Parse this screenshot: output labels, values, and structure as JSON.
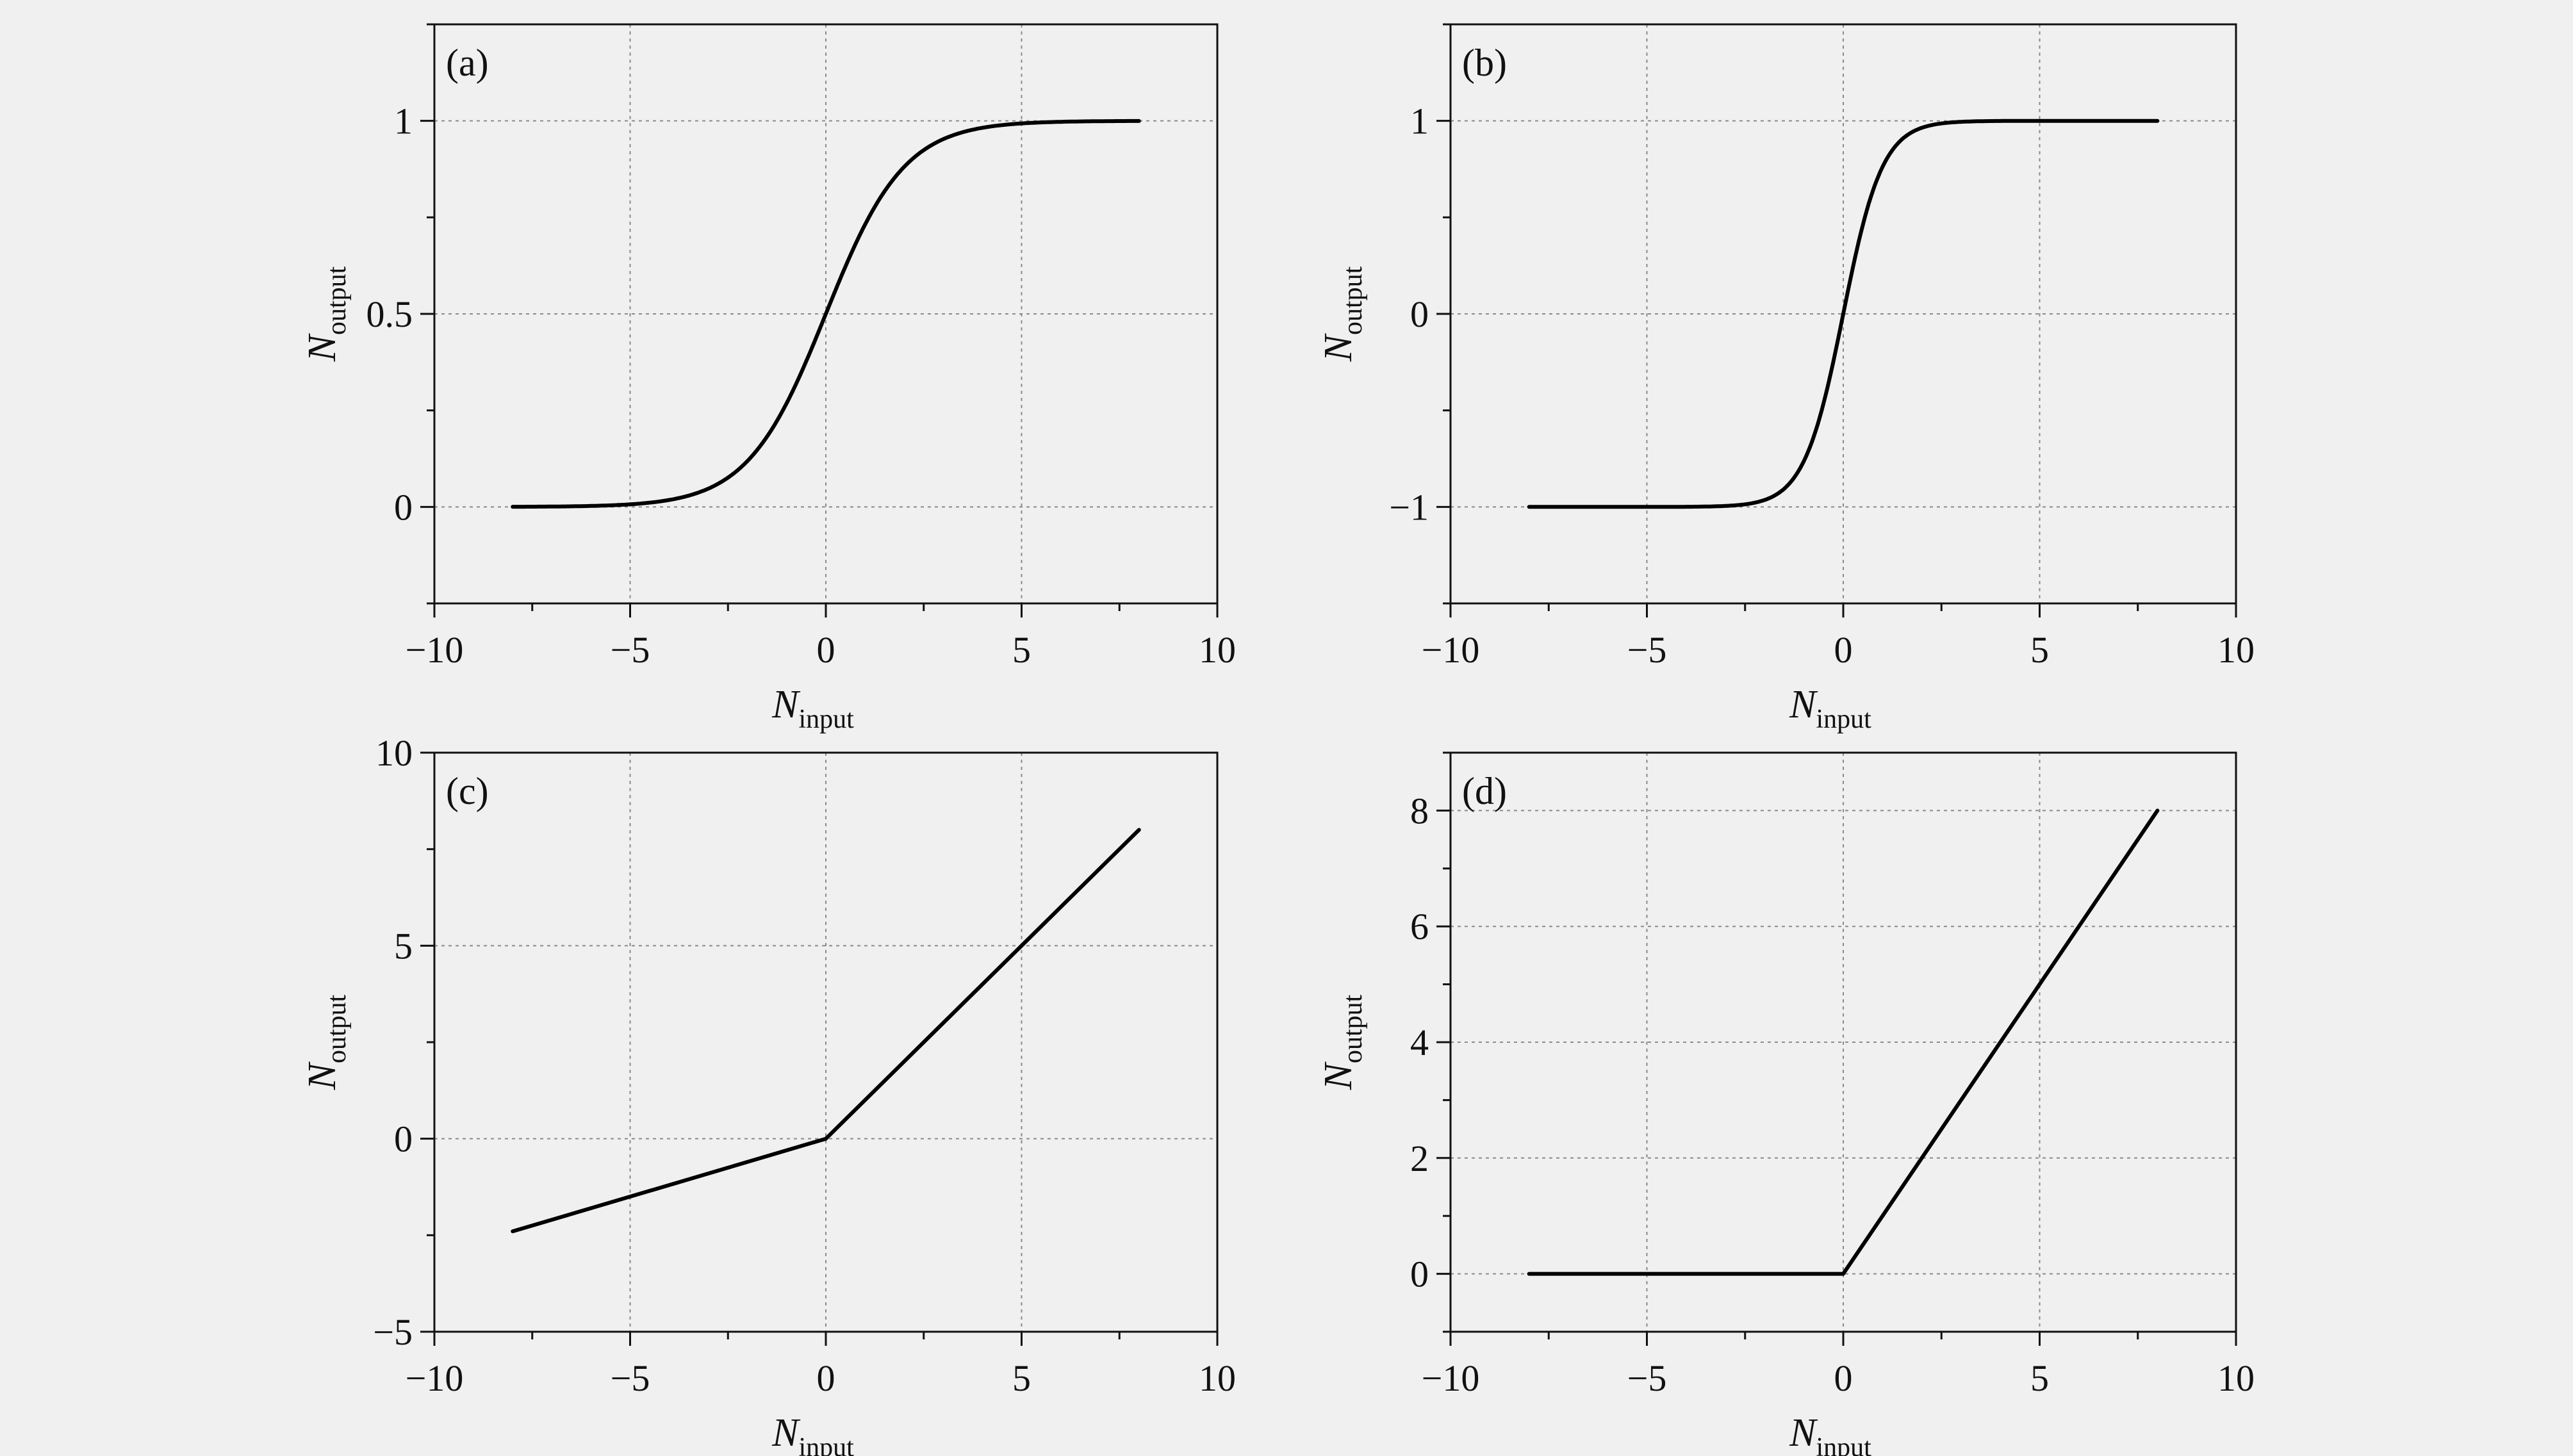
{
  "chart_data": [
    {
      "type": "line",
      "panel_label": "(a)",
      "xlabel": "N",
      "xlabel_sub": "input",
      "ylabel": "N",
      "ylabel_sub": "output",
      "xlim": [
        -10,
        10
      ],
      "ylim": [
        -0.25,
        1.25
      ],
      "xticks": [
        -10,
        -5,
        0,
        5,
        10
      ],
      "yticks": [
        0,
        0.5,
        1
      ],
      "xtick_labels": [
        "−10",
        "−5",
        "0",
        "5",
        "10"
      ],
      "ytick_labels": [
        "0",
        "0.5",
        "1"
      ],
      "grid": true,
      "function": "sigmoid",
      "series": [
        {
          "x": [
            -8,
            -7,
            -6,
            -5,
            -4,
            -3,
            -2,
            -1.5,
            -1,
            -0.5,
            0,
            0.5,
            1,
            1.5,
            2,
            3,
            4,
            5,
            6,
            7,
            8
          ],
          "y": [
            0.0003,
            0.0009,
            0.0025,
            0.0067,
            0.018,
            0.047,
            0.119,
            0.182,
            0.269,
            0.378,
            0.5,
            0.622,
            0.731,
            0.818,
            0.881,
            0.953,
            0.982,
            0.993,
            0.998,
            0.999,
            1.0
          ]
        }
      ]
    },
    {
      "type": "line",
      "panel_label": "(b)",
      "xlabel": "N",
      "xlabel_sub": "input",
      "ylabel": "N",
      "ylabel_sub": "output",
      "xlim": [
        -10,
        10
      ],
      "ylim": [
        -1.5,
        1.5
      ],
      "xticks": [
        -10,
        -5,
        0,
        5,
        10
      ],
      "yticks": [
        -1,
        0,
        1
      ],
      "xtick_labels": [
        "−10",
        "−5",
        "0",
        "5",
        "10"
      ],
      "ytick_labels": [
        "−1",
        "0",
        "1"
      ],
      "grid": true,
      "function": "tanh",
      "series": [
        {
          "x": [
            -8,
            -6,
            -4,
            -3,
            -2.5,
            -2,
            -1.5,
            -1,
            -0.5,
            0,
            0.5,
            1,
            1.5,
            2,
            2.5,
            3,
            4,
            6,
            8
          ],
          "y": [
            -1.0,
            -1.0,
            -0.999,
            -0.995,
            -0.987,
            -0.964,
            -0.905,
            -0.762,
            -0.462,
            0,
            0.462,
            0.762,
            0.905,
            0.964,
            0.987,
            0.995,
            0.999,
            1.0,
            1.0
          ]
        }
      ]
    },
    {
      "type": "line",
      "panel_label": "(c)",
      "xlabel": "N",
      "xlabel_sub": "input",
      "ylabel": "N",
      "ylabel_sub": "output",
      "xlim": [
        -10,
        10
      ],
      "ylim": [
        -5,
        10
      ],
      "xticks": [
        -10,
        -5,
        0,
        5,
        10
      ],
      "yticks": [
        -5,
        0,
        5,
        10
      ],
      "xtick_labels": [
        "−10",
        "−5",
        "0",
        "5",
        "10"
      ],
      "ytick_labels": [
        "−5",
        "0",
        "5",
        "10"
      ],
      "grid": true,
      "function": "leaky relu",
      "series": [
        {
          "x": [
            -8,
            0,
            8
          ],
          "y": [
            -2.4,
            0,
            8
          ]
        }
      ]
    },
    {
      "type": "line",
      "panel_label": "(d)",
      "xlabel": "N",
      "xlabel_sub": "input",
      "ylabel": "N",
      "ylabel_sub": "output",
      "xlim": [
        -10,
        10
      ],
      "ylim": [
        -1,
        9
      ],
      "xticks": [
        -10,
        -5,
        0,
        5,
        10
      ],
      "yticks": [
        0,
        2,
        4,
        6,
        8
      ],
      "xtick_labels": [
        "−10",
        "−5",
        "0",
        "5",
        "10"
      ],
      "ytick_labels": [
        "0",
        "2",
        "4",
        "6",
        "8"
      ],
      "grid": true,
      "function": "relu",
      "series": [
        {
          "x": [
            -8,
            0,
            8
          ],
          "y": [
            0,
            0,
            8
          ]
        }
      ]
    }
  ]
}
